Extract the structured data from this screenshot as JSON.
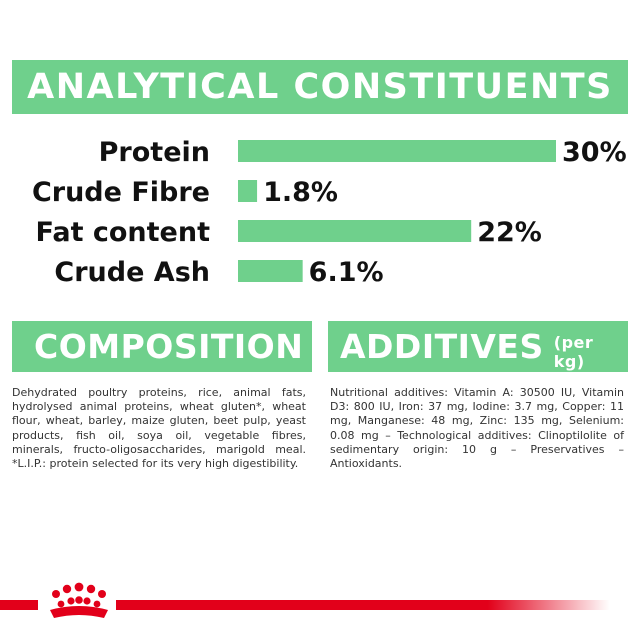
{
  "colors": {
    "accent": "#6fd08c",
    "brand_red": "#e2001a",
    "text": "#111111"
  },
  "banners": {
    "title": "ANALYTICAL CONSTITUENTS",
    "composition": "COMPOSITION",
    "additives": "ADDITIVES",
    "additives_unit": "(per kg)"
  },
  "chart_data": {
    "type": "bar",
    "orientation": "horizontal",
    "categories": [
      "Protein",
      "Crude Fibre",
      "Fat content",
      "Crude Ash"
    ],
    "values": [
      30,
      1.8,
      22,
      6.1
    ],
    "value_labels": [
      "30%",
      "1.8%",
      "22%",
      "6.1%"
    ],
    "xlim": [
      0,
      30
    ],
    "grid": false,
    "legend": "none"
  },
  "composition_text": "Dehydrated poultry proteins, rice, animal fats, hydrolysed animal proteins, wheat gluten*, wheat flour, wheat, barley, maize gluten, beet pulp, yeast products, fish oil, soya oil, vegetable fibres, minerals, fructo-oligosaccharides, marigold meal. *L.I.P.: protein selected for its very high digestibility.",
  "additives_text": "Nutritional additives: Vitamin A: 30500 IU, Vitamin D3: 800 IU, Iron: 37 mg, Iodine: 3.7 mg, Copper: 11 mg, Manganese: 48 mg, Zinc: 135 mg, Selenium: 0.08 mg – Technological additives: Clinoptilolite of sedimentary origin: 10 g – Preservatives – Antioxidants.",
  "footer": {
    "logo_icon": "crown-icon"
  }
}
